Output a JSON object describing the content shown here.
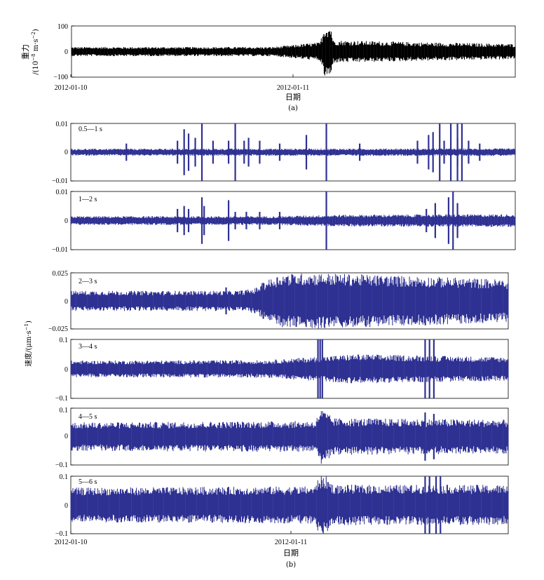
{
  "chart_data": [
    {
      "type": "line",
      "id": "a",
      "ylabel_line1": "重力",
      "ylabel_line2": "/(10",
      "ylabel_exp1": "−8",
      "ylabel_mid": " m·s",
      "ylabel_exp2": "−2",
      "ylabel_end": ")",
      "yticks": [
        "100",
        "0",
        "−100"
      ],
      "ylim": [
        -100,
        100
      ],
      "xticks": [
        "2012-01-10",
        "2012-01-11"
      ],
      "xlabel": "日期",
      "caption": "(a)",
      "series": [
        {
          "color": "#000000"
        }
      ],
      "envelope": [
        {
          "x": 0.0,
          "amp": 18
        },
        {
          "x": 0.45,
          "amp": 18
        },
        {
          "x": 0.49,
          "amp": 24
        },
        {
          "x": 0.52,
          "amp": 30
        },
        {
          "x": 0.56,
          "amp": 36
        },
        {
          "x": 0.57,
          "amp": 100
        },
        {
          "x": 0.585,
          "amp": 100
        },
        {
          "x": 0.59,
          "amp": 44
        },
        {
          "x": 0.65,
          "amp": 42
        },
        {
          "x": 0.8,
          "amp": 36
        },
        {
          "x": 1.0,
          "amp": 30
        }
      ]
    },
    {
      "type": "line",
      "id": "b",
      "ylabel": "速度/(μm·s",
      "ylabel_exp": "−1",
      "ylabel_end": ")",
      "xticks": [
        "2012-01-10",
        "2012-01-11"
      ],
      "xlabel": "日期",
      "caption": "(b)",
      "series": [
        {
          "color": "#2e3192"
        }
      ],
      "panels": [
        {
          "band": "0.5—1 s",
          "yticks": [
            "0.01",
            "0",
            "−0.01"
          ],
          "ylim": [
            -0.01,
            0.01
          ],
          "base_amp": 0.0012,
          "envelope": [
            {
              "x": 0,
              "amp": 0.0012
            },
            {
              "x": 1,
              "amp": 0.0013
            }
          ],
          "spikes": [
            {
              "x": 0.125,
              "amp": 0.003
            },
            {
              "x": 0.24,
              "amp": 0.004
            },
            {
              "x": 0.255,
              "amp": 0.008
            },
            {
              "x": 0.265,
              "amp": 0.0065
            },
            {
              "x": 0.28,
              "amp": 0.005
            },
            {
              "x": 0.295,
              "amp": 0.01
            },
            {
              "x": 0.32,
              "amp": 0.004
            },
            {
              "x": 0.355,
              "amp": 0.004
            },
            {
              "x": 0.37,
              "amp": 0.01
            },
            {
              "x": 0.39,
              "amp": 0.004
            },
            {
              "x": 0.4,
              "amp": 0.005
            },
            {
              "x": 0.425,
              "amp": 0.004
            },
            {
              "x": 0.47,
              "amp": 0.003
            },
            {
              "x": 0.53,
              "amp": 0.006
            },
            {
              "x": 0.575,
              "amp": 0.01
            },
            {
              "x": 0.65,
              "amp": 0.003
            },
            {
              "x": 0.78,
              "amp": 0.004
            },
            {
              "x": 0.805,
              "amp": 0.006
            },
            {
              "x": 0.815,
              "amp": 0.007
            },
            {
              "x": 0.83,
              "amp": 0.01
            },
            {
              "x": 0.84,
              "amp": 0.004
            },
            {
              "x": 0.855,
              "amp": 0.01
            },
            {
              "x": 0.87,
              "amp": 0.005
            },
            {
              "x": 0.87,
              "amp": 0.01
            },
            {
              "x": 0.88,
              "amp": 0.01
            },
            {
              "x": 0.895,
              "amp": 0.004
            },
            {
              "x": 0.92,
              "amp": 0.003
            }
          ]
        },
        {
          "band": "1—2 s",
          "yticks": [
            "0.01",
            "0",
            "−0.01"
          ],
          "ylim": [
            -0.01,
            0.01
          ],
          "envelope": [
            {
              "x": 0,
              "amp": 0.0015
            },
            {
              "x": 0.45,
              "amp": 0.0015
            },
            {
              "x": 0.6,
              "amp": 0.002
            },
            {
              "x": 1,
              "amp": 0.0022
            }
          ],
          "spikes": [
            {
              "x": 0.24,
              "amp": 0.004
            },
            {
              "x": 0.255,
              "amp": 0.005
            },
            {
              "x": 0.265,
              "amp": 0.004
            },
            {
              "x": 0.295,
              "amp": 0.008
            },
            {
              "x": 0.3,
              "amp": 0.005
            },
            {
              "x": 0.355,
              "amp": 0.007
            },
            {
              "x": 0.37,
              "amp": 0.003
            },
            {
              "x": 0.395,
              "amp": 0.003
            },
            {
              "x": 0.425,
              "amp": 0.003
            },
            {
              "x": 0.47,
              "amp": 0.003
            },
            {
              "x": 0.575,
              "amp": 0.01
            },
            {
              "x": 0.8,
              "amp": 0.004
            },
            {
              "x": 0.82,
              "amp": 0.006
            },
            {
              "x": 0.85,
              "amp": 0.008
            },
            {
              "x": 0.86,
              "amp": 0.01
            },
            {
              "x": 0.87,
              "amp": 0.006
            }
          ]
        },
        {
          "band": "2—3 s",
          "yticks": [
            "0.025",
            "0",
            "−0.025"
          ],
          "ylim": [
            -0.025,
            0.025
          ],
          "envelope": [
            {
              "x": 0,
              "amp": 0.009
            },
            {
              "x": 0.38,
              "amp": 0.009
            },
            {
              "x": 0.42,
              "amp": 0.011
            },
            {
              "x": 0.445,
              "amp": 0.018
            },
            {
              "x": 0.48,
              "amp": 0.024
            },
            {
              "x": 0.55,
              "amp": 0.025
            },
            {
              "x": 0.8,
              "amp": 0.022
            },
            {
              "x": 1,
              "amp": 0.019
            }
          ],
          "spikes": [
            {
              "x": 0.355,
              "amp": 0.012
            },
            {
              "x": 0.44,
              "amp": 0.016
            }
          ]
        },
        {
          "band": "3—4 s",
          "yticks": [
            "0.1",
            "0",
            "−0.1"
          ],
          "ylim": [
            -0.1,
            0.1
          ],
          "envelope": [
            {
              "x": 0,
              "amp": 0.028
            },
            {
              "x": 0.45,
              "amp": 0.03
            },
            {
              "x": 0.55,
              "amp": 0.04
            },
            {
              "x": 0.65,
              "amp": 0.05
            },
            {
              "x": 1,
              "amp": 0.04
            }
          ],
          "spikes": [
            {
              "x": 0.565,
              "amp": 0.1
            },
            {
              "x": 0.57,
              "amp": 0.1
            },
            {
              "x": 0.575,
              "amp": 0.1
            },
            {
              "x": 0.81,
              "amp": 0.1
            },
            {
              "x": 0.82,
              "amp": 0.1
            },
            {
              "x": 0.83,
              "amp": 0.1
            }
          ]
        },
        {
          "band": "4—5 s",
          "yticks": [
            "0.1",
            "0",
            "−0.1"
          ],
          "ylim": [
            -0.1,
            0.1
          ],
          "envelope": [
            {
              "x": 0,
              "amp": 0.05
            },
            {
              "x": 0.56,
              "amp": 0.055
            },
            {
              "x": 0.57,
              "amp": 0.1
            },
            {
              "x": 0.58,
              "amp": 0.09
            },
            {
              "x": 0.6,
              "amp": 0.065
            },
            {
              "x": 1,
              "amp": 0.06
            }
          ],
          "spikes": [
            {
              "x": 0.81,
              "amp": 0.085
            },
            {
              "x": 0.83,
              "amp": 0.08
            }
          ]
        },
        {
          "band": "5—6 s",
          "yticks": [
            "0.1",
            "0",
            "−0.1"
          ],
          "ylim": [
            -0.1,
            0.1
          ],
          "envelope": [
            {
              "x": 0,
              "amp": 0.06
            },
            {
              "x": 0.56,
              "amp": 0.065
            },
            {
              "x": 0.565,
              "amp": 0.1
            },
            {
              "x": 0.585,
              "amp": 0.1
            },
            {
              "x": 0.6,
              "amp": 0.07
            },
            {
              "x": 1,
              "amp": 0.07
            }
          ],
          "spikes": [
            {
              "x": 0.81,
              "amp": 0.1
            },
            {
              "x": 0.82,
              "amp": 0.1
            },
            {
              "x": 0.835,
              "amp": 0.1
            },
            {
              "x": 0.845,
              "amp": 0.1
            }
          ]
        }
      ]
    }
  ]
}
